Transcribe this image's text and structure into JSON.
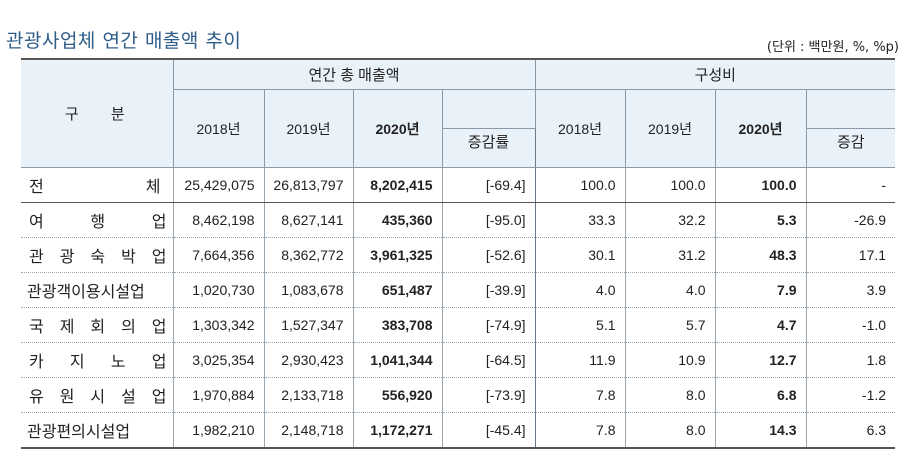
{
  "title": "관광사업체 연간 매출액 추이",
  "unit": "(단위 : 백만원, %, %p)",
  "header": {
    "category": "구 분",
    "group_sales": "연간 총 매출액",
    "group_share": "구성비",
    "sales_years": [
      "2018년",
      "2019년",
      "2020년"
    ],
    "sales_change": "증감률",
    "share_years": [
      "2018년",
      "2019년",
      "2020년"
    ],
    "share_change": "증감"
  },
  "rows": [
    {
      "name": "전체",
      "chars": [
        "전",
        "체"
      ],
      "s2018": "25,429,075",
      "s2019": "26,813,797",
      "s2020": "8,202,415",
      "rate": "[-69.4]",
      "c2018": "100.0",
      "c2019": "100.0",
      "c2020": "100.0",
      "diff": "-"
    },
    {
      "name": "여행업",
      "chars": [
        "여",
        "행",
        "업"
      ],
      "s2018": "8,462,198",
      "s2019": "8,627,141",
      "s2020": "435,360",
      "rate": "[-95.0]",
      "c2018": "33.3",
      "c2019": "32.2",
      "c2020": "5.3",
      "diff": "-26.9"
    },
    {
      "name": "관광숙박업",
      "chars": [
        "관",
        "광",
        "숙",
        "박",
        "업"
      ],
      "s2018": "7,664,356",
      "s2019": "8,362,772",
      "s2020": "3,961,325",
      "rate": "[-52.6]",
      "c2018": "30.1",
      "c2019": "31.2",
      "c2020": "48.3",
      "diff": "17.1"
    },
    {
      "name": "관광객이용시설업",
      "chars": [
        "관광객이용시설업"
      ],
      "s2018": "1,020,730",
      "s2019": "1,083,678",
      "s2020": "651,487",
      "rate": "[-39.9]",
      "c2018": "4.0",
      "c2019": "4.0",
      "c2020": "7.9",
      "diff": "3.9"
    },
    {
      "name": "국제회의업",
      "chars": [
        "국",
        "제",
        "회",
        "의",
        "업"
      ],
      "s2018": "1,303,342",
      "s2019": "1,527,347",
      "s2020": "383,708",
      "rate": "[-74.9]",
      "c2018": "5.1",
      "c2019": "5.7",
      "c2020": "4.7",
      "diff": "-1.0"
    },
    {
      "name": "카지노업",
      "chars": [
        "카",
        "지",
        "노",
        "업"
      ],
      "s2018": "3,025,354",
      "s2019": "2,930,423",
      "s2020": "1,041,344",
      "rate": "[-64.5]",
      "c2018": "11.9",
      "c2019": "10.9",
      "c2020": "12.7",
      "diff": "1.8"
    },
    {
      "name": "유원시설업",
      "chars": [
        "유",
        "원",
        "시",
        "설",
        "업"
      ],
      "s2018": "1,970,884",
      "s2019": "2,133,718",
      "s2020": "556,920",
      "rate": "[-73.9]",
      "c2018": "7.8",
      "c2019": "8.0",
      "c2020": "6.8",
      "diff": "-1.2"
    },
    {
      "name": "관광편의시설업",
      "chars": [
        "관광편의시설업"
      ],
      "s2018": "1,982,210",
      "s2019": "2,148,718",
      "s2020": "1,172,271",
      "rate": "[-45.4]",
      "c2018": "7.8",
      "c2019": "8.0",
      "c2020": "14.3",
      "diff": "6.3"
    }
  ]
}
